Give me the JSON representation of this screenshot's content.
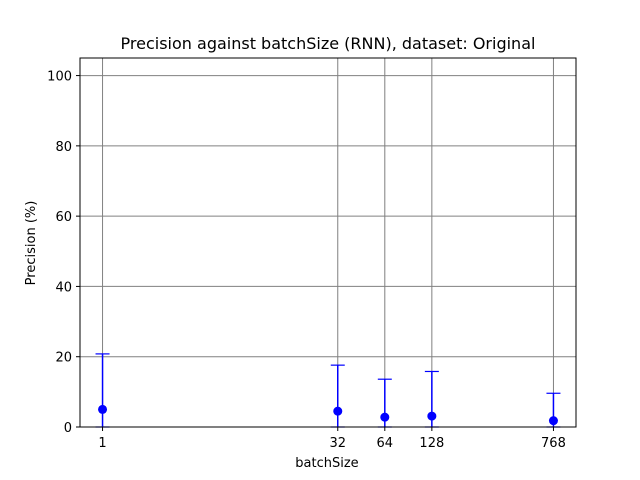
{
  "chart_data": {
    "type": "scatter",
    "title": "Precision against batchSize (RNN), dataset: Original",
    "xlabel": "batchSize",
    "ylabel": "Precision (%)",
    "x_scale": "categorical-by-log",
    "categories": [
      "1",
      "32",
      "64",
      "128",
      "768"
    ],
    "x": [
      1,
      32,
      64,
      128,
      768
    ],
    "ylim": [
      0,
      105
    ],
    "yticks": [
      0,
      20,
      40,
      60,
      80,
      100
    ],
    "grid": true,
    "series": [
      {
        "values": [
          5.0,
          4.5,
          2.8,
          3.1,
          1.8
        ],
        "err_low": [
          0,
          0,
          0,
          0,
          0
        ],
        "err_high": [
          20.8,
          17.6,
          13.6,
          15.8,
          9.6
        ]
      }
    ],
    "colors": {
      "series": "#0000ff",
      "grid": "#808080",
      "axis": "#000000"
    }
  }
}
